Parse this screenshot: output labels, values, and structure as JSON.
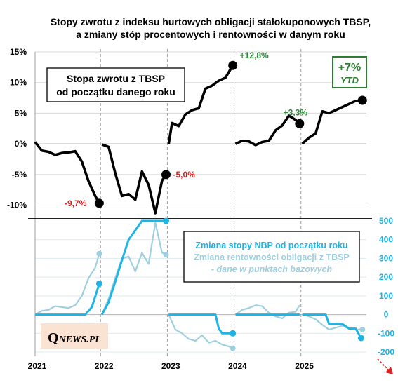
{
  "title_line1": "Stopy zwrotu z indeksu hurtowych obligacji stałokuponowych TBSP,",
  "title_line2": "a zmiany stóp procentowych i rentowności w danym roku",
  "logo": {
    "q": "Q",
    "rest": "NEWS.PL",
    "bg": "#fbe3d3"
  },
  "chart_data": [
    {
      "type": "line",
      "panel": "top",
      "y_unit": "%",
      "ylim": [
        -12,
        15
      ],
      "y_ticks": [
        "15%",
        "10%",
        "5%",
        "0%",
        "-5%",
        "-10%"
      ],
      "y_tick_values": [
        15,
        10,
        5,
        0,
        -5,
        -10
      ],
      "x_ticks": [
        "2021",
        "2022",
        "2023",
        "2024",
        "2025"
      ],
      "x_tick_values": [
        2021,
        2022,
        2023,
        2024,
        2025
      ],
      "box_label_line1": "Stopa zwrotu z TBSP",
      "box_label_line2": "od początku danego roku",
      "color": "#000000",
      "series": [
        {
          "year": 2021,
          "x": [
            2021.0,
            2021.1,
            2021.2,
            2021.3,
            2021.4,
            2021.5,
            2021.6,
            2021.7,
            2021.8,
            2021.9,
            2021.96
          ],
          "y": [
            0.3,
            -1.1,
            -1.3,
            -1.8,
            -1.5,
            -1.4,
            -1.2,
            -2.9,
            -6.1,
            -8.5,
            -9.7
          ]
        },
        {
          "year": 2022,
          "x": [
            2022.0,
            2022.1,
            2022.2,
            2022.3,
            2022.4,
            2022.5,
            2022.6,
            2022.7,
            2022.8,
            2022.9,
            2022.96
          ],
          "y": [
            -0.1,
            -0.5,
            -4.8,
            -8.5,
            -8.2,
            -9.1,
            -4.5,
            -6.7,
            -11.3,
            -6.0,
            -5.0
          ]
        },
        {
          "year": 2023,
          "x": [
            2023.0,
            2023.05,
            2023.15,
            2023.25,
            2023.35,
            2023.45,
            2023.55,
            2023.65,
            2023.75,
            2023.85,
            2023.96
          ],
          "y": [
            0.0,
            3.4,
            2.9,
            4.8,
            5.5,
            5.8,
            9.0,
            9.5,
            10.3,
            10.8,
            12.8
          ]
        },
        {
          "year": 2024,
          "x": [
            2024.0,
            2024.1,
            2024.2,
            2024.3,
            2024.4,
            2024.5,
            2024.6,
            2024.7,
            2024.8,
            2024.9,
            2024.96
          ],
          "y": [
            0.0,
            0.5,
            0.4,
            -0.2,
            0.3,
            0.5,
            2.2,
            3.0,
            4.6,
            3.9,
            3.3
          ]
        },
        {
          "year": 2025,
          "x": [
            2025.0,
            2025.1,
            2025.2,
            2025.3,
            2025.4,
            2025.5,
            2025.6,
            2025.7,
            2025.8,
            2025.9
          ],
          "y": [
            0.0,
            1.0,
            1.7,
            5.3,
            5.0,
            5.5,
            6.0,
            6.5,
            7.0,
            7.1
          ]
        }
      ],
      "annotations": [
        {
          "text": "-9,7%",
          "x": 2021.96,
          "y": -9.7,
          "color": "#e02020",
          "side": "left"
        },
        {
          "text": "-5,0%",
          "x": 2022.96,
          "y": -5.0,
          "color": "#e02020",
          "side": "right"
        },
        {
          "text": "+12,8%",
          "x": 2023.96,
          "y": 12.8,
          "color": "#2e8b3a",
          "side": "right"
        },
        {
          "text": "+3,3%",
          "x": 2024.96,
          "y": 3.3,
          "color": "#2e8b3a",
          "side": "above"
        }
      ],
      "ytd_box": {
        "line1": "+7%",
        "line2": "YTD",
        "color": "#2e7d32"
      }
    },
    {
      "type": "line",
      "panel": "bottom",
      "y_unit": "punkty bazowe",
      "ylim": [
        -200,
        500
      ],
      "y_ticks": [
        "500",
        "400",
        "300",
        "200",
        "100",
        "0",
        "-100",
        "-200"
      ],
      "y_tick_values": [
        500,
        400,
        300,
        200,
        100,
        0,
        -100,
        -200
      ],
      "legend_line1": "Zmiana stopy NBP od początku roku",
      "legend_line2": "Zmiana rentowności obligacji z TBSP",
      "legend_line3": "- dane w punktach bazowych",
      "series": [
        {
          "name": "Zmiana stopy NBP od początku roku",
          "color": "#1fb4e6",
          "segments": [
            {
              "x": [
                2021.0,
                2021.5,
                2021.75,
                2021.85,
                2021.96
              ],
              "y": [
                0,
                0,
                0,
                40,
                165
              ]
            },
            {
              "x": [
                2022.0,
                2022.1,
                2022.2,
                2022.3,
                2022.4,
                2022.5,
                2022.6,
                2022.7,
                2022.8,
                2022.96
              ],
              "y": [
                0,
                65,
                175,
                290,
                400,
                450,
                500,
                500,
                500,
                500
              ]
            },
            {
              "x": [
                2023.0,
                2023.7,
                2023.75,
                2023.8,
                2023.96
              ],
              "y": [
                0,
                0,
                -75,
                -100,
                -100
              ]
            },
            {
              "x": [
                2024.0,
                2024.96
              ],
              "y": [
                0,
                0
              ]
            },
            {
              "x": [
                2025.0,
                2025.35,
                2025.4,
                2025.6,
                2025.7,
                2025.8,
                2025.88
              ],
              "y": [
                0,
                0,
                -50,
                -50,
                -75,
                -75,
                -125
              ]
            }
          ]
        },
        {
          "name": "Zmiana rentowności obligacji z TBSP",
          "color": "#9fd0e0",
          "segments": [
            {
              "x": [
                2021.0,
                2021.1,
                2021.2,
                2021.3,
                2021.4,
                2021.5,
                2021.6,
                2021.7,
                2021.8,
                2021.9,
                2021.96
              ],
              "y": [
                0,
                20,
                25,
                45,
                40,
                35,
                50,
                100,
                195,
                250,
                325
              ]
            },
            {
              "x": [
                2022.0,
                2022.1,
                2022.2,
                2022.3,
                2022.4,
                2022.5,
                2022.6,
                2022.7,
                2022.8,
                2022.9,
                2022.96
              ],
              "y": [
                0,
                85,
                195,
                300,
                310,
                230,
                330,
                270,
                490,
                330,
                320
              ]
            },
            {
              "x": [
                2023.0,
                2023.1,
                2023.2,
                2023.3,
                2023.4,
                2023.5,
                2023.6,
                2023.7,
                2023.8,
                2023.9,
                2023.96
              ],
              "y": [
                0,
                -80,
                -100,
                -130,
                -140,
                -110,
                -150,
                -140,
                -160,
                -170,
                -180
              ]
            },
            {
              "x": [
                2024.0,
                2024.1,
                2024.2,
                2024.3,
                2024.4,
                2024.5,
                2024.6,
                2024.7,
                2024.8,
                2024.9,
                2024.96
              ],
              "y": [
                0,
                25,
                35,
                50,
                45,
                10,
                -10,
                -20,
                10,
                15,
                50
              ]
            },
            {
              "x": [
                2025.0,
                2025.1,
                2025.2,
                2025.3,
                2025.4,
                2025.5,
                2025.6,
                2025.7,
                2025.8,
                2025.9
              ],
              "y": [
                0,
                -10,
                -25,
                -55,
                -80,
                -70,
                -60,
                -75,
                -80,
                -80
              ]
            }
          ]
        }
      ]
    }
  ]
}
